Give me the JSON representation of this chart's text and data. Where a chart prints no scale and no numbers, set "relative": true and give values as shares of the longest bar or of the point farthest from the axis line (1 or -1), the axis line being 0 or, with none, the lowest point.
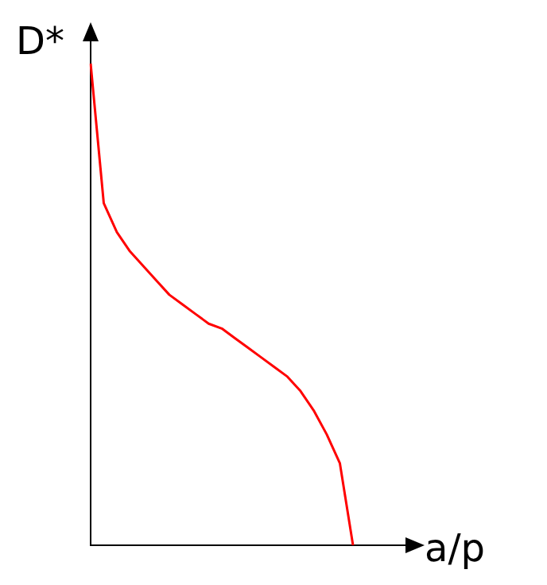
{
  "chart_data": {
    "type": "line",
    "xlabel": "a/p",
    "ylabel": "D*",
    "relative": true,
    "legend": false,
    "grid": false,
    "marker": "none",
    "line_style": "solid",
    "categories": [
      null,
      null,
      null,
      null,
      null,
      null,
      null,
      null,
      null,
      null,
      null,
      null,
      null,
      null,
      null,
      null,
      null,
      null,
      null,
      null,
      null,
      null,
      null,
      null,
      null
    ],
    "series": [
      {
        "color": "#ff0000",
        "values": [
          1.0,
          0.71,
          0.65,
          0.61,
          0.58,
          0.55,
          0.52,
          0.5,
          0.48,
          0.46,
          0.45,
          0.43,
          0.41,
          0.39,
          0.37,
          0.35,
          0.32,
          0.28,
          0.23,
          0.17,
          0,
          null,
          null,
          null,
          null
        ]
      }
    ]
  }
}
